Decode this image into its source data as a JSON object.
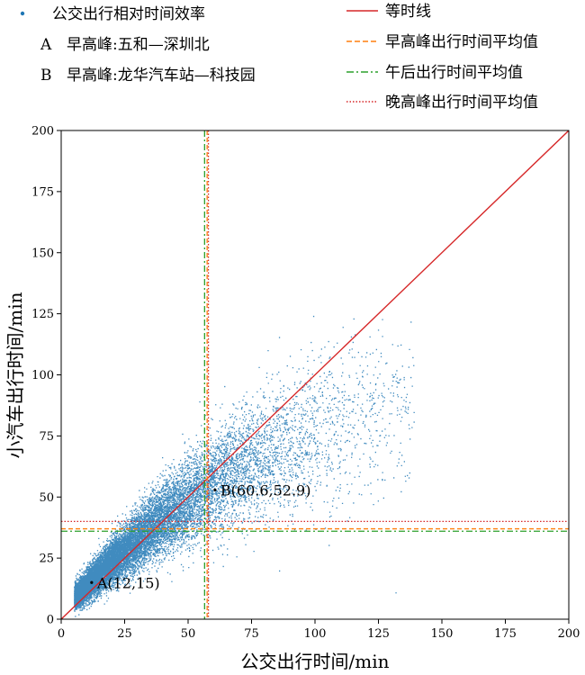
{
  "chart_data": {
    "type": "scatter",
    "title": "",
    "xlabel": "公交出行时间/min",
    "ylabel": "小汽车出行时间/min",
    "xlim": [
      0,
      200
    ],
    "ylim": [
      0,
      200
    ],
    "xticks": [
      "0",
      "25",
      "50",
      "75",
      "100",
      "125",
      "150",
      "175",
      "200"
    ],
    "yticks": [
      "0",
      "25",
      "50",
      "75",
      "100",
      "125",
      "150",
      "175",
      "200"
    ],
    "grid": false,
    "legend_placement": "top",
    "legend": {
      "left": [
        {
          "marker": "•",
          "label": "公交出行相对时间效率",
          "color": "#1f77b4"
        },
        {
          "marker": "A",
          "label": "早高峰:五和—深圳北"
        },
        {
          "marker": "B",
          "label": "早高峰:龙华汽车站—科技园"
        }
      ],
      "right": [
        {
          "label": "等时线",
          "color": "#d62728",
          "dash": "solid"
        },
        {
          "label": "早高峰出行时间平均值",
          "color": "#ff7f0e",
          "dash": "dashed"
        },
        {
          "label": "午后出行时间平均值",
          "color": "#2ca02c",
          "dash": "dashdot"
        },
        {
          "label": "晚高峰出行时间平均值",
          "color": "#d62728",
          "dash": "dotted"
        }
      ]
    },
    "scatter_color": "#1f77b4",
    "scatter_description_range": {
      "x": [
        0,
        200
      ],
      "y": [
        0,
        125
      ]
    },
    "isochrone": {
      "from": [
        0,
        0
      ],
      "to": [
        200,
        200
      ]
    },
    "mean_lines": [
      {
        "name": "早高峰出行时间平均值",
        "x": 57.5,
        "y": 37.0,
        "color": "#ff7f0e",
        "dash": "dashed"
      },
      {
        "name": "午后出行时间平均值",
        "x": 56.5,
        "y": 36.0,
        "color": "#2ca02c",
        "dash": "dashdot"
      },
      {
        "name": "晚高峰出行时间平均值",
        "x": 58.0,
        "y": 40.0,
        "color": "#d62728",
        "dash": "dotted"
      }
    ],
    "annotations": [
      {
        "id": "A",
        "label": "A(12,15)",
        "x": 12,
        "y": 15
      },
      {
        "id": "B",
        "label": "B(60.6,52.9)",
        "x": 60.6,
        "y": 52.9
      }
    ]
  }
}
